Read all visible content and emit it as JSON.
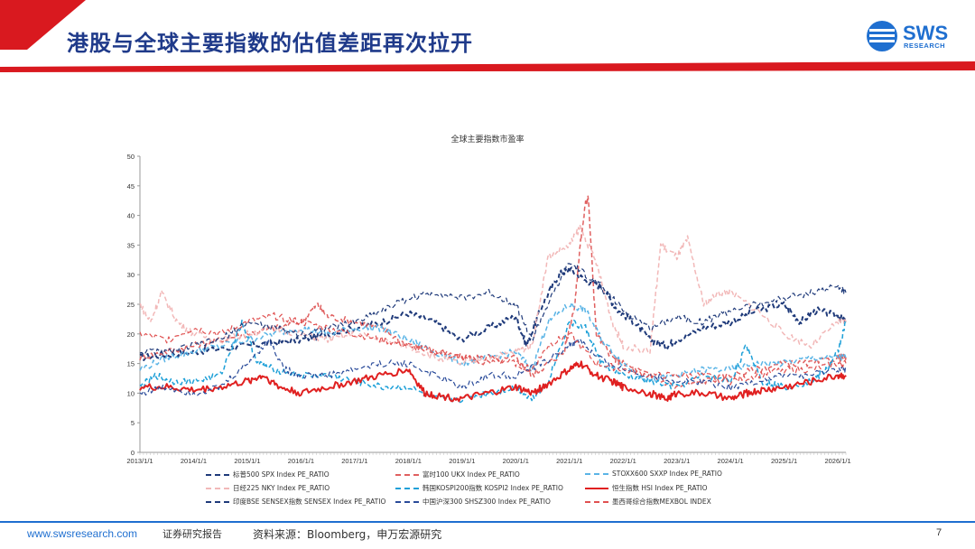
{
  "header": {
    "title": "港股与全球主要指数的估值差距再次拉开",
    "logo_text": "SWS",
    "logo_sub": "RESEARCH",
    "colors": {
      "red": "#d9191f",
      "blue": "#1f6fd0",
      "title": "#1f3a8a"
    }
  },
  "footer": {
    "url": "www.swsresearch.com",
    "tag": "证券研究报告",
    "source": "资料来源：Bloomberg，申万宏源研究",
    "page": "7"
  },
  "chart_data": {
    "type": "line",
    "title": "全球主要指数市盈率",
    "xlabel": "",
    "ylabel": "",
    "ylim": [
      0,
      50
    ],
    "yticks": [
      0,
      5,
      10,
      15,
      20,
      25,
      30,
      35,
      40,
      45,
      50
    ],
    "xlim": [
      2013.0,
      2026.15
    ],
    "xticks": [
      "2013/1/1",
      "2014/1/1",
      "2015/1/1",
      "2016/1/1",
      "2017/1/1",
      "2018/1/1",
      "2019/1/1",
      "2020/1/1",
      "2021/1/1",
      "2022/1/1",
      "2023/1/1",
      "2024/1/1",
      "2025/1/1",
      "2026/1/1"
    ],
    "grid": false,
    "legend_position": "bottom",
    "series": [
      {
        "name": "标普500 SPX Index PE_RATIO",
        "color": "#1f3a7a",
        "dash": "dashed",
        "width": 2,
        "x": [
          2013.0,
          2013.5,
          2014.0,
          2014.5,
          2015.0,
          2015.5,
          2016.0,
          2016.5,
          2017.0,
          2017.5,
          2018.0,
          2018.5,
          2018.95,
          2019.5,
          2020.0,
          2020.2,
          2020.5,
          2020.8,
          2021.0,
          2021.3,
          2021.6,
          2021.9,
          2022.2,
          2022.5,
          2022.8,
          2023.0,
          2023.5,
          2024.0,
          2024.5,
          2025.0,
          2025.3,
          2025.6,
          2026.0,
          2026.15
        ],
        "y": [
          16,
          16.5,
          17,
          17.5,
          18,
          18.5,
          19,
          20,
          21,
          22,
          23.5,
          22,
          19,
          21,
          23,
          18,
          25,
          30,
          31,
          29,
          28,
          24,
          22,
          19,
          18,
          19,
          21,
          22,
          24,
          25,
          22,
          24,
          23,
          22
        ]
      },
      {
        "name": "富时100 UKX Index PE_RATIO",
        "color": "#e06060",
        "dash": "dashed",
        "width": 1.5,
        "x": [
          2013.0,
          2013.5,
          2014.0,
          2014.5,
          2015.0,
          2015.5,
          2016.0,
          2016.3,
          2016.5,
          2017.0,
          2017.5,
          2018.0,
          2018.5,
          2019.0,
          2019.5,
          2020.0,
          2020.3,
          2020.6,
          2020.9,
          2021.1,
          2021.2,
          2021.3,
          2021.35,
          2021.5,
          2021.8,
          2022.0,
          2022.5,
          2023.0,
          2023.5,
          2024.0,
          2024.5,
          2025.0,
          2025.5,
          2026.0,
          2026.15
        ],
        "y": [
          16,
          17,
          18,
          19,
          20,
          21,
          22,
          25,
          23,
          22,
          21,
          18,
          17,
          16,
          15,
          16,
          13,
          15,
          17,
          25,
          35,
          42,
          43,
          20,
          16,
          15,
          13,
          11,
          12,
          13,
          14,
          15,
          15,
          16,
          16
        ]
      },
      {
        "name": "STOXX600 SXXP Index PE_RATIO",
        "color": "#5ab4e6",
        "dash": "dashed",
        "width": 1.5,
        "x": [
          2013.0,
          2013.5,
          2014.0,
          2014.5,
          2015.0,
          2015.5,
          2016.0,
          2016.5,
          2017.0,
          2017.5,
          2018.0,
          2018.5,
          2019.0,
          2019.5,
          2020.0,
          2020.3,
          2020.6,
          2021.0,
          2021.3,
          2021.6,
          2022.0,
          2022.5,
          2023.0,
          2023.5,
          2024.0,
          2024.5,
          2025.0,
          2025.5,
          2026.0,
          2026.15
        ],
        "y": [
          14,
          16,
          17,
          18,
          19,
          20,
          21,
          20,
          21,
          21,
          19,
          17,
          15,
          16,
          17,
          14,
          22,
          25,
          24,
          19,
          15,
          12,
          13,
          14,
          14,
          15,
          15,
          16,
          16,
          16
        ]
      },
      {
        "name": "日经225 NKY Index PE_RATIO",
        "color": "#f2b8b8",
        "dash": "dashed",
        "width": 1.5,
        "x": [
          2013.0,
          2013.2,
          2013.4,
          2013.7,
          2014.0,
          2014.5,
          2015.0,
          2015.5,
          2016.0,
          2016.5,
          2017.0,
          2017.5,
          2018.0,
          2018.5,
          2019.0,
          2019.5,
          2020.0,
          2020.3,
          2020.6,
          2021.0,
          2021.2,
          2021.5,
          2021.8,
          2022.0,
          2022.5,
          2022.7,
          2023.0,
          2023.2,
          2023.5,
          2023.8,
          2024.0,
          2024.5,
          2025.0,
          2025.5,
          2026.0,
          2026.15
        ],
        "y": [
          25,
          22,
          27,
          22,
          20,
          19,
          20,
          21,
          20,
          19,
          20,
          19,
          18,
          16,
          15,
          16,
          17,
          18,
          33,
          35,
          38,
          32,
          22,
          18,
          17,
          35,
          33,
          36,
          25,
          27,
          27,
          24,
          20,
          18,
          22,
          22
        ]
      },
      {
        "name": "韩国KOSPI200指数 KOSPI2 Index PE_RATIO",
        "color": "#1ea0d8",
        "dash": "dashed",
        "width": 1.5,
        "x": [
          2013.0,
          2013.3,
          2013.6,
          2014.0,
          2014.5,
          2014.9,
          2015.2,
          2015.5,
          2016.0,
          2016.5,
          2017.0,
          2017.5,
          2018.0,
          2018.5,
          2019.0,
          2019.5,
          2020.0,
          2020.3,
          2020.6,
          2021.0,
          2021.3,
          2021.6,
          2022.0,
          2022.5,
          2023.0,
          2023.5,
          2024.0,
          2024.3,
          2024.6,
          2025.0,
          2025.5,
          2025.8,
          2026.0,
          2026.15
        ],
        "y": [
          11,
          13,
          12,
          12,
          13,
          22,
          15,
          14,
          13,
          13,
          12,
          11,
          11,
          9,
          9,
          10,
          11,
          9,
          12,
          22,
          21,
          15,
          13,
          12,
          11,
          13,
          12,
          18,
          12,
          11,
          12,
          14,
          17,
          22
        ]
      },
      {
        "name": "恒生指数 HSI Index PE_RATIO",
        "color": "#e02020",
        "dash": "solid",
        "width": 2,
        "x": [
          2013.0,
          2013.5,
          2014.0,
          2014.5,
          2015.0,
          2015.3,
          2015.6,
          2016.0,
          2016.5,
          2017.0,
          2017.5,
          2018.0,
          2018.3,
          2018.6,
          2019.0,
          2019.5,
          2020.0,
          2020.3,
          2020.6,
          2021.0,
          2021.2,
          2021.5,
          2021.8,
          2022.0,
          2022.5,
          2022.8,
          2023.0,
          2023.5,
          2024.0,
          2024.3,
          2024.6,
          2025.0,
          2025.5,
          2026.0,
          2026.15
        ],
        "y": [
          11,
          11,
          10.5,
          11,
          12,
          13,
          11,
          10,
          11,
          12,
          13,
          14,
          10,
          9.5,
          9,
          10,
          11,
          10,
          11.5,
          14,
          15,
          13,
          12,
          11,
          10,
          9,
          10,
          10,
          9,
          10,
          10.5,
          11,
          12,
          13,
          13
        ]
      },
      {
        "name": "印度BSE SENSEX指数 SENSEX Index PE_RATIO",
        "color": "#1f3a7a",
        "dash": "dashed",
        "width": 1.2,
        "x": [
          2013.0,
          2013.5,
          2014.0,
          2014.5,
          2015.0,
          2015.5,
          2016.0,
          2016.5,
          2017.0,
          2017.5,
          2018.0,
          2018.5,
          2019.0,
          2019.5,
          2020.0,
          2020.3,
          2020.6,
          2021.0,
          2021.3,
          2021.6,
          2022.0,
          2022.5,
          2023.0,
          2023.5,
          2024.0,
          2024.5,
          2025.0,
          2025.5,
          2026.0,
          2026.15
        ],
        "y": [
          17,
          17,
          18,
          19,
          22,
          21,
          20,
          21,
          22,
          24,
          26,
          27,
          26,
          27,
          25,
          19,
          25,
          32,
          30,
          28,
          24,
          21,
          23,
          22,
          24,
          25,
          26,
          27,
          28,
          27
        ]
      },
      {
        "name": "中国沪深300 SHSZ300 Index PE_RATIO",
        "color": "#2a4b9a",
        "dash": "dashed",
        "width": 1.2,
        "x": [
          2013.0,
          2013.5,
          2014.0,
          2014.5,
          2015.0,
          2015.4,
          2015.7,
          2016.0,
          2016.5,
          2017.0,
          2017.5,
          2018.0,
          2018.5,
          2019.0,
          2019.5,
          2020.0,
          2020.5,
          2021.0,
          2021.2,
          2021.5,
          2022.0,
          2022.5,
          2023.0,
          2023.5,
          2024.0,
          2024.5,
          2025.0,
          2025.5,
          2026.0,
          2026.15
        ],
        "y": [
          10,
          11,
          10,
          11,
          15,
          19,
          14,
          13,
          13,
          14,
          15,
          15,
          13,
          11,
          13,
          13,
          15,
          18,
          19,
          16,
          14,
          13,
          12,
          12,
          11,
          12,
          13,
          13,
          14,
          14
        ]
      },
      {
        "name": "墨西哥综合指数MEXBOL INDEX",
        "color": "#e05050",
        "dash": "dashed",
        "width": 1.2,
        "x": [
          2013.0,
          2013.5,
          2014.0,
          2014.5,
          2015.0,
          2015.5,
          2016.0,
          2016.5,
          2017.0,
          2017.5,
          2018.0,
          2018.5,
          2019.0,
          2019.5,
          2020.0,
          2020.3,
          2020.6,
          2021.0,
          2021.5,
          2022.0,
          2022.5,
          2023.0,
          2023.5,
          2024.0,
          2024.5,
          2025.0,
          2025.5,
          2026.0,
          2026.15
        ],
        "y": [
          20,
          19,
          21,
          20,
          22,
          23,
          22,
          21,
          20,
          19,
          18,
          17,
          16,
          16,
          15,
          14,
          18,
          20,
          15,
          14,
          13,
          13,
          13,
          12,
          13,
          14,
          14,
          15,
          15
        ]
      }
    ]
  }
}
